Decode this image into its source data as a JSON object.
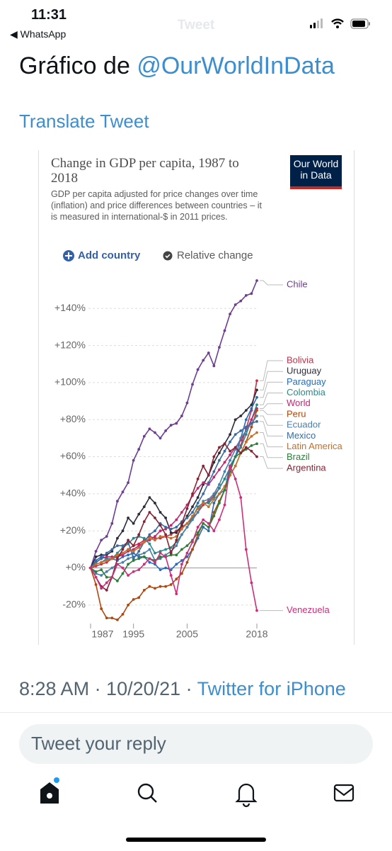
{
  "status": {
    "time": "11:31",
    "back_app": "WhatsApp"
  },
  "header": {
    "title": "Tweet"
  },
  "tweet": {
    "text": "Gráfico de ",
    "mention": "@OurWorldInData",
    "translate": "Translate Tweet",
    "timestamp": "8:28 AM · 10/20/21 · ",
    "source": "Twitter for iPhone"
  },
  "reply": {
    "placeholder": "Tweet your reply"
  },
  "chart_data": {
    "type": "line",
    "title": "Change in GDP per capita, 1987 to 2018",
    "subtitle": "GDP per capita adjusted for price changes over time (inflation) and price differences between countries – it is measured in international-$ in 2011 prices.",
    "logo": "Our World in Data",
    "add_country": "Add country",
    "relative_change": "Relative change",
    "x": [
      1987,
      1988,
      1989,
      1990,
      1991,
      1992,
      1993,
      1994,
      1995,
      1996,
      1997,
      1998,
      1999,
      2000,
      2001,
      2002,
      2003,
      2004,
      2005,
      2006,
      2007,
      2008,
      2009,
      2010,
      2011,
      2012,
      2013,
      2014,
      2015,
      2016,
      2017,
      2018
    ],
    "xlim": [
      1987,
      2018
    ],
    "xticks": [
      1987,
      1995,
      2005,
      2018
    ],
    "ylim": [
      -30,
      155
    ],
    "yticks": [
      {
        "value": -20,
        "label": "-20%"
      },
      {
        "value": 0,
        "label": "+0%"
      },
      {
        "value": 20,
        "label": "+20%"
      },
      {
        "value": 40,
        "label": "+40%"
      },
      {
        "value": 60,
        "label": "+60%"
      },
      {
        "value": 80,
        "label": "+80%"
      },
      {
        "value": 100,
        "label": "+100%"
      },
      {
        "value": 120,
        "label": "+120%"
      },
      {
        "value": 140,
        "label": "+140%"
      }
    ],
    "grid": true,
    "series": [
      {
        "name": "Chile",
        "color": "#6d3e91",
        "values": [
          0,
          9,
          15,
          17,
          24,
          36,
          41,
          46,
          58,
          64,
          71,
          75,
          73,
          70,
          74,
          77,
          78,
          82,
          89,
          99,
          107,
          112,
          116,
          109,
          119,
          128,
          137,
          142,
          144,
          147,
          148,
          155
        ]
      },
      {
        "name": "Bolivia",
        "color": "#c4314b",
        "values": [
          0,
          1,
          2,
          3,
          5,
          6,
          8,
          10,
          12,
          13,
          15,
          17,
          16,
          16,
          17,
          18,
          20,
          22,
          24,
          27,
          30,
          34,
          36,
          39,
          43,
          48,
          54,
          60,
          66,
          75,
          85,
          101
        ]
      },
      {
        "name": "Uruguay",
        "color": "#2d2d3a",
        "values": [
          0,
          6,
          7,
          7,
          9,
          16,
          20,
          27,
          24,
          29,
          33,
          38,
          35,
          30,
          27,
          19,
          19,
          23,
          28,
          33,
          38,
          45,
          50,
          57,
          62,
          67,
          72,
          80,
          82,
          85,
          88,
          96
        ]
      },
      {
        "name": "Paraguay",
        "color": "#286bbb",
        "values": [
          0,
          4,
          6,
          5,
          5,
          4,
          6,
          7,
          8,
          6,
          6,
          3,
          2,
          -1,
          0,
          -1,
          2,
          4,
          6,
          10,
          16,
          22,
          20,
          35,
          40,
          42,
          55,
          60,
          70,
          80,
          86,
          92
        ]
      },
      {
        "name": "Colombia",
        "color": "#2a8a8a",
        "values": [
          0,
          2,
          3,
          5,
          5,
          8,
          11,
          13,
          16,
          17,
          16,
          13,
          8,
          9,
          10,
          11,
          14,
          18,
          22,
          27,
          33,
          35,
          35,
          38,
          43,
          48,
          54,
          60,
          65,
          72,
          80,
          88
        ]
      },
      {
        "name": "World",
        "color": "#c02872",
        "values": [
          0,
          3,
          5,
          6,
          6,
          6,
          7,
          9,
          10,
          12,
          14,
          15,
          17,
          20,
          21,
          23,
          26,
          30,
          34,
          39,
          43,
          46,
          45,
          49,
          53,
          57,
          61,
          65,
          69,
          74,
          80,
          86
        ]
      },
      {
        "name": "Peru",
        "color": "#b0470f",
        "values": [
          0,
          -9,
          -22,
          -27,
          -27,
          -28,
          -25,
          -20,
          -17,
          -16,
          -12,
          -10,
          -11,
          -10,
          -10,
          -9,
          -6,
          -3,
          3,
          10,
          18,
          24,
          22,
          30,
          36,
          42,
          50,
          55,
          62,
          68,
          76,
          85
        ]
      },
      {
        "name": "Ecuador",
        "color": "#4a7fa8",
        "values": [
          0,
          -3,
          -4,
          -2,
          0,
          2,
          3,
          5,
          6,
          7,
          8,
          10,
          4,
          5,
          7,
          9,
          12,
          18,
          22,
          26,
          30,
          36,
          37,
          40,
          45,
          52,
          58,
          64,
          70,
          74,
          78,
          82
        ]
      },
      {
        "name": "Mexico",
        "color": "#396ba0",
        "values": [
          0,
          3,
          5,
          8,
          10,
          12,
          12,
          14,
          5,
          9,
          14,
          18,
          20,
          24,
          22,
          21,
          22,
          25,
          27,
          30,
          35,
          40,
          46,
          52,
          58,
          63,
          68,
          72,
          74,
          76,
          78,
          79
        ]
      },
      {
        "name": "Latin America",
        "color": "#c46f2b",
        "values": [
          0,
          2,
          3,
          4,
          5,
          7,
          8,
          10,
          9,
          11,
          14,
          16,
          15,
          17,
          17,
          16,
          17,
          21,
          24,
          28,
          32,
          35,
          33,
          37,
          40,
          44,
          50,
          55,
          62,
          68,
          71,
          73
        ]
      },
      {
        "name": "Brazil",
        "color": "#2e7d3a",
        "values": [
          0,
          -2,
          -1,
          -5,
          -5,
          -7,
          -3,
          2,
          4,
          5,
          6,
          5,
          4,
          6,
          6,
          7,
          7,
          10,
          12,
          15,
          19,
          24,
          22,
          28,
          35,
          42,
          52,
          60,
          62,
          64,
          66,
          67
        ]
      },
      {
        "name": "Argentina",
        "color": "#862334",
        "values": [
          0,
          -5,
          -10,
          -12,
          -5,
          5,
          10,
          15,
          12,
          18,
          25,
          30,
          27,
          23,
          18,
          8,
          15,
          24,
          32,
          40,
          48,
          55,
          50,
          60,
          65,
          67,
          63,
          65,
          62,
          65,
          63,
          60
        ]
      },
      {
        "name": "Venezuela",
        "color": "#cc2e7a",
        "values": [
          0,
          -5,
          -11,
          -8,
          -5,
          2,
          0,
          -4,
          -2,
          -1,
          2,
          5,
          3,
          8,
          6,
          -4,
          -14,
          2,
          8,
          14,
          22,
          26,
          24,
          20,
          26,
          34,
          55,
          48,
          38,
          10,
          -8,
          -23
        ]
      }
    ]
  }
}
